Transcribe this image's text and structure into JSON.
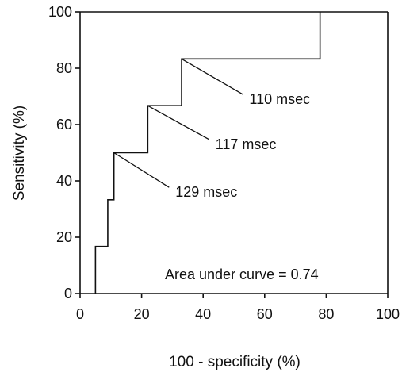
{
  "chart_data": {
    "type": "line",
    "title": "",
    "xlabel": "100  -  specificity (%)",
    "ylabel": "Sensitivity (%)",
    "xlim": [
      0,
      100
    ],
    "ylim": [
      0,
      100
    ],
    "xticks": [
      0,
      20,
      40,
      60,
      80,
      100
    ],
    "yticks": [
      0,
      20,
      40,
      60,
      80,
      100
    ],
    "grid": false,
    "series": [
      {
        "step_points": [
          [
            5,
            0
          ],
          [
            5,
            16.7
          ],
          [
            9,
            16.7
          ],
          [
            9,
            33.3
          ],
          [
            11,
            33.3
          ],
          [
            11,
            50
          ],
          [
            22,
            50
          ],
          [
            22,
            66.7
          ],
          [
            33,
            66.7
          ],
          [
            33,
            83.3
          ],
          [
            78,
            83.3
          ],
          [
            78,
            100
          ]
        ]
      }
    ],
    "annotations": [
      {
        "text": "110 msec",
        "point": [
          33,
          83.3
        ],
        "label_at": [
          55,
          69
        ]
      },
      {
        "text": "117 msec",
        "point": [
          22,
          66.7
        ],
        "label_at": [
          44,
          53
        ]
      },
      {
        "text": "129 msec",
        "point": [
          11,
          50
        ],
        "label_at": [
          31,
          36
        ]
      }
    ],
    "note": "Area under curve = 0.74"
  }
}
